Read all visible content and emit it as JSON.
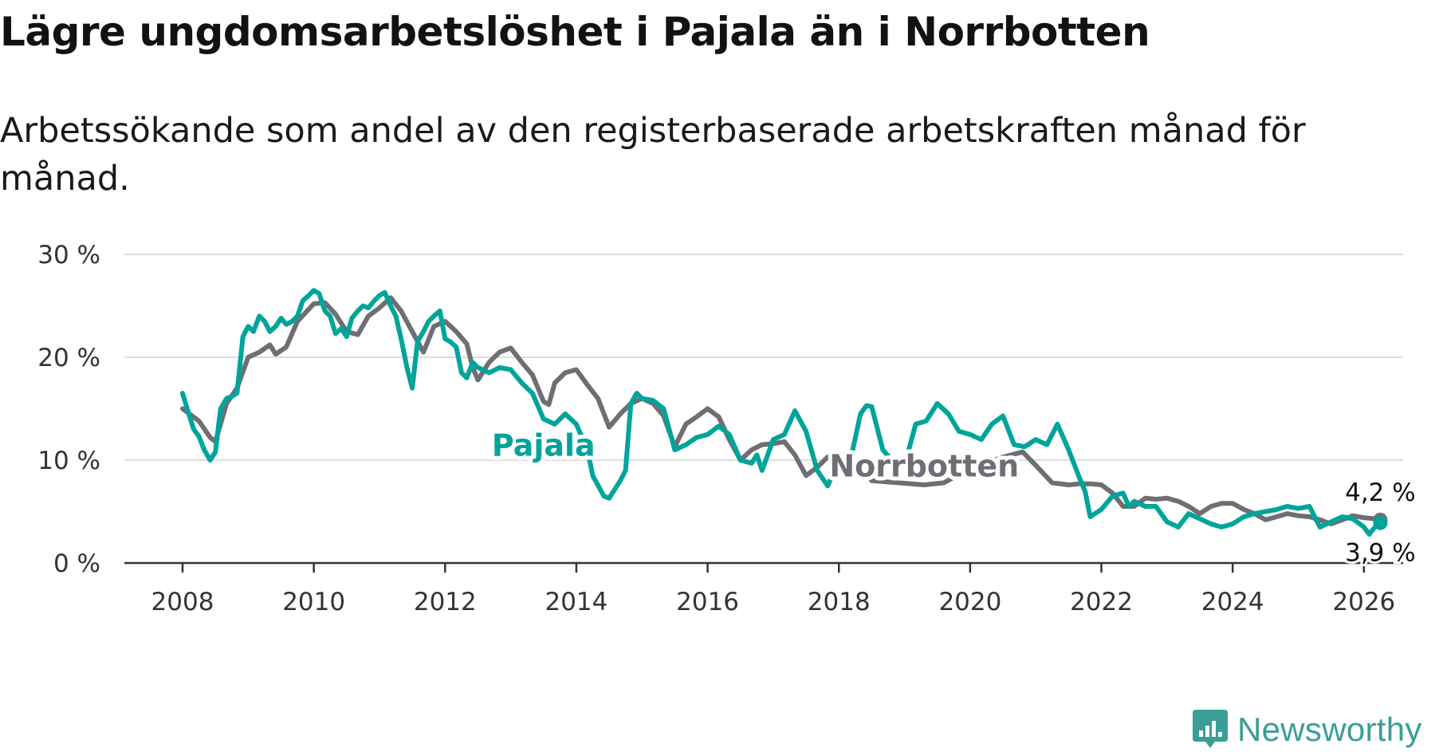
{
  "title": "Lägre ungdomsarbetslöshet i Pajala än i Norrbotten",
  "subtitle": "Arbetssökande som andel av den registerbaserade arbetskraften månad för månad.",
  "logo": {
    "text": "Newsworthy",
    "icon": "newsworthy-logo-icon"
  },
  "colors": {
    "Pajala": "#00a49a",
    "Norrbotten": "#6f6e74",
    "grid": "#dddddd",
    "axis": "#333333",
    "text": "#121212"
  },
  "chart_data": {
    "type": "line",
    "title": "Lägre ungdomsarbetslöshet i Pajala än i Norrbotten",
    "xlabel": "",
    "ylabel": "",
    "xlim": [
      2008,
      2026.5
    ],
    "ylim": [
      0,
      30
    ],
    "grid": true,
    "x_ticks": [
      2008,
      2010,
      2012,
      2014,
      2016,
      2018,
      2020,
      2022,
      2024,
      2026
    ],
    "x_tick_labels": [
      "2008",
      "2010",
      "2012",
      "2014",
      "2016",
      "2018",
      "2020",
      "2022",
      "2024",
      "2026"
    ],
    "y_ticks": [
      0,
      10,
      20,
      30
    ],
    "y_tick_labels": [
      "0 %",
      "10 %",
      "20 %",
      "30 %"
    ],
    "series": [
      {
        "name": "Norrbotten",
        "label": "Norrbotten",
        "color": "#6f6e74",
        "end_label": "4,2 %",
        "points": [
          [
            2008.0,
            15.0
          ],
          [
            2008.25,
            13.8
          ],
          [
            2008.42,
            12.2
          ],
          [
            2008.5,
            11.8
          ],
          [
            2008.67,
            15.5
          ],
          [
            2008.83,
            17.0
          ],
          [
            2009.0,
            20.0
          ],
          [
            2009.17,
            20.5
          ],
          [
            2009.33,
            21.2
          ],
          [
            2009.42,
            20.3
          ],
          [
            2009.58,
            21.0
          ],
          [
            2009.75,
            23.5
          ],
          [
            2010.0,
            25.2
          ],
          [
            2010.17,
            25.3
          ],
          [
            2010.33,
            24.2
          ],
          [
            2010.5,
            22.5
          ],
          [
            2010.67,
            22.2
          ],
          [
            2010.83,
            24.0
          ],
          [
            2011.0,
            24.8
          ],
          [
            2011.17,
            25.8
          ],
          [
            2011.33,
            24.5
          ],
          [
            2011.5,
            22.5
          ],
          [
            2011.67,
            20.5
          ],
          [
            2011.83,
            23.0
          ],
          [
            2012.0,
            23.5
          ],
          [
            2012.17,
            22.5
          ],
          [
            2012.33,
            21.3
          ],
          [
            2012.42,
            19.0
          ],
          [
            2012.5,
            17.8
          ],
          [
            2012.67,
            19.5
          ],
          [
            2012.83,
            20.5
          ],
          [
            2013.0,
            20.9
          ],
          [
            2013.17,
            19.5
          ],
          [
            2013.33,
            18.3
          ],
          [
            2013.5,
            15.7
          ],
          [
            2013.58,
            15.4
          ],
          [
            2013.67,
            17.5
          ],
          [
            2013.83,
            18.5
          ],
          [
            2014.0,
            18.8
          ],
          [
            2014.17,
            17.3
          ],
          [
            2014.33,
            16.0
          ],
          [
            2014.5,
            13.2
          ],
          [
            2014.67,
            14.5
          ],
          [
            2014.83,
            15.5
          ],
          [
            2015.0,
            16.0
          ],
          [
            2015.17,
            15.5
          ],
          [
            2015.33,
            14.3
          ],
          [
            2015.5,
            11.3
          ],
          [
            2015.67,
            13.5
          ],
          [
            2015.83,
            14.2
          ],
          [
            2016.0,
            15.0
          ],
          [
            2016.17,
            14.2
          ],
          [
            2016.33,
            12.0
          ],
          [
            2016.5,
            10.0
          ],
          [
            2016.67,
            11.0
          ],
          [
            2016.83,
            11.5
          ],
          [
            2017.0,
            11.6
          ],
          [
            2017.17,
            11.8
          ],
          [
            2017.33,
            10.5
          ],
          [
            2017.5,
            8.5
          ],
          [
            2017.67,
            9.3
          ],
          [
            2017.83,
            10.3
          ],
          [
            2018.0,
            10.6
          ],
          [
            2018.17,
            10.2
          ],
          [
            2018.33,
            9.5
          ],
          [
            2018.5,
            8.0
          ],
          [
            2019.3,
            7.6
          ],
          [
            2019.6,
            7.8
          ],
          [
            2020.0,
            9.2
          ],
          [
            2020.5,
            10.3
          ],
          [
            2020.8,
            10.8
          ],
          [
            2021.0,
            9.5
          ],
          [
            2021.25,
            7.8
          ],
          [
            2021.5,
            7.6
          ],
          [
            2021.67,
            7.7
          ],
          [
            2021.83,
            7.7
          ],
          [
            2022.0,
            7.6
          ],
          [
            2022.17,
            6.8
          ],
          [
            2022.33,
            5.5
          ],
          [
            2022.5,
            5.5
          ],
          [
            2022.67,
            6.3
          ],
          [
            2022.83,
            6.2
          ],
          [
            2023.0,
            6.3
          ],
          [
            2023.17,
            6.0
          ],
          [
            2023.33,
            5.5
          ],
          [
            2023.5,
            4.8
          ],
          [
            2023.67,
            5.5
          ],
          [
            2023.83,
            5.8
          ],
          [
            2024.0,
            5.8
          ],
          [
            2024.17,
            5.2
          ],
          [
            2024.33,
            4.8
          ],
          [
            2024.5,
            4.2
          ],
          [
            2024.67,
            4.5
          ],
          [
            2024.83,
            4.8
          ],
          [
            2025.0,
            4.6
          ],
          [
            2025.17,
            4.5
          ],
          [
            2025.33,
            4.2
          ],
          [
            2025.5,
            3.8
          ],
          [
            2025.67,
            4.2
          ],
          [
            2025.83,
            4.6
          ],
          [
            2026.0,
            4.4
          ],
          [
            2026.17,
            4.3
          ],
          [
            2026.25,
            4.2
          ]
        ]
      },
      {
        "name": "Pajala",
        "label": "Pajala",
        "color": "#00a49a",
        "end_label": "3,9 %",
        "points": [
          [
            2008.0,
            16.5
          ],
          [
            2008.08,
            14.8
          ],
          [
            2008.17,
            13.0
          ],
          [
            2008.25,
            12.3
          ],
          [
            2008.33,
            11.0
          ],
          [
            2008.42,
            10.0
          ],
          [
            2008.5,
            10.8
          ],
          [
            2008.58,
            15.0
          ],
          [
            2008.67,
            16.0
          ],
          [
            2008.75,
            16.2
          ],
          [
            2008.83,
            16.5
          ],
          [
            2008.92,
            22.0
          ],
          [
            2009.0,
            23.0
          ],
          [
            2009.08,
            22.5
          ],
          [
            2009.17,
            24.0
          ],
          [
            2009.25,
            23.5
          ],
          [
            2009.33,
            22.5
          ],
          [
            2009.42,
            23.0
          ],
          [
            2009.5,
            23.8
          ],
          [
            2009.58,
            23.2
          ],
          [
            2009.67,
            23.5
          ],
          [
            2009.75,
            24.0
          ],
          [
            2009.83,
            25.5
          ],
          [
            2009.92,
            26.0
          ],
          [
            2010.0,
            26.5
          ],
          [
            2010.08,
            26.2
          ],
          [
            2010.17,
            24.5
          ],
          [
            2010.25,
            24.0
          ],
          [
            2010.33,
            22.3
          ],
          [
            2010.42,
            22.8
          ],
          [
            2010.5,
            22.0
          ],
          [
            2010.58,
            23.8
          ],
          [
            2010.67,
            24.5
          ],
          [
            2010.75,
            25.0
          ],
          [
            2010.83,
            24.8
          ],
          [
            2010.92,
            25.5
          ],
          [
            2011.0,
            26.0
          ],
          [
            2011.08,
            26.3
          ],
          [
            2011.17,
            25.0
          ],
          [
            2011.25,
            24.0
          ],
          [
            2011.33,
            21.8
          ],
          [
            2011.42,
            19.0
          ],
          [
            2011.5,
            17.0
          ],
          [
            2011.58,
            21.5
          ],
          [
            2011.67,
            22.5
          ],
          [
            2011.75,
            23.5
          ],
          [
            2011.83,
            24.0
          ],
          [
            2011.92,
            24.5
          ],
          [
            2012.0,
            21.8
          ],
          [
            2012.08,
            21.5
          ],
          [
            2012.17,
            21.0
          ],
          [
            2012.25,
            18.5
          ],
          [
            2012.33,
            18.0
          ],
          [
            2012.42,
            19.5
          ],
          [
            2012.5,
            19.0
          ],
          [
            2012.67,
            18.5
          ],
          [
            2012.83,
            19.0
          ],
          [
            2013.0,
            18.8
          ],
          [
            2013.17,
            17.5
          ],
          [
            2013.33,
            16.5
          ],
          [
            2013.5,
            14.0
          ],
          [
            2013.67,
            13.5
          ],
          [
            2013.83,
            14.5
          ],
          [
            2014.0,
            13.5
          ],
          [
            2014.17,
            11.0
          ],
          [
            2014.25,
            8.5
          ],
          [
            2014.42,
            6.5
          ],
          [
            2014.5,
            6.3
          ],
          [
            2014.67,
            8.0
          ],
          [
            2014.75,
            9.0
          ],
          [
            2014.83,
            15.5
          ],
          [
            2014.92,
            16.5
          ],
          [
            2015.0,
            16.0
          ],
          [
            2015.17,
            15.8
          ],
          [
            2015.33,
            15.0
          ],
          [
            2015.5,
            11.0
          ],
          [
            2015.67,
            11.5
          ],
          [
            2015.83,
            12.2
          ],
          [
            2016.0,
            12.5
          ],
          [
            2016.17,
            13.3
          ],
          [
            2016.33,
            12.5
          ],
          [
            2016.5,
            10.0
          ],
          [
            2016.67,
            9.7
          ],
          [
            2016.75,
            10.5
          ],
          [
            2016.83,
            9.0
          ],
          [
            2017.0,
            12.0
          ],
          [
            2017.17,
            12.5
          ],
          [
            2017.33,
            14.8
          ],
          [
            2017.5,
            12.8
          ],
          [
            2017.67,
            9.0
          ],
          [
            2017.83,
            7.5
          ],
          [
            2018.0,
            10.0
          ],
          [
            2018.17,
            9.8
          ],
          [
            2018.33,
            14.5
          ],
          [
            2018.42,
            15.3
          ],
          [
            2018.5,
            15.2
          ],
          [
            2018.67,
            11.0
          ],
          [
            2018.83,
            9.8
          ],
          [
            2019.0,
            9.5
          ],
          [
            2019.17,
            13.5
          ],
          [
            2019.33,
            13.8
          ],
          [
            2019.5,
            15.5
          ],
          [
            2019.67,
            14.5
          ],
          [
            2019.83,
            12.8
          ],
          [
            2020.0,
            12.5
          ],
          [
            2020.17,
            12.0
          ],
          [
            2020.33,
            13.5
          ],
          [
            2020.5,
            14.3
          ],
          [
            2020.67,
            11.5
          ],
          [
            2020.83,
            11.3
          ],
          [
            2021.0,
            12.0
          ],
          [
            2021.17,
            11.5
          ],
          [
            2021.33,
            13.5
          ],
          [
            2021.5,
            11.0
          ],
          [
            2021.67,
            8.2
          ],
          [
            2021.75,
            7.0
          ],
          [
            2021.83,
            4.5
          ],
          [
            2022.0,
            5.2
          ],
          [
            2022.17,
            6.5
          ],
          [
            2022.33,
            6.8
          ],
          [
            2022.42,
            5.5
          ],
          [
            2022.5,
            6.0
          ],
          [
            2022.67,
            5.5
          ],
          [
            2022.83,
            5.5
          ],
          [
            2023.0,
            4.0
          ],
          [
            2023.17,
            3.5
          ],
          [
            2023.33,
            4.8
          ],
          [
            2023.5,
            4.3
          ],
          [
            2023.67,
            3.8
          ],
          [
            2023.83,
            3.5
          ],
          [
            2024.0,
            3.8
          ],
          [
            2024.17,
            4.5
          ],
          [
            2024.33,
            4.8
          ],
          [
            2024.5,
            5.0
          ],
          [
            2024.67,
            5.2
          ],
          [
            2024.83,
            5.5
          ],
          [
            2025.0,
            5.3
          ],
          [
            2025.17,
            5.5
          ],
          [
            2025.33,
            3.5
          ],
          [
            2025.5,
            4.0
          ],
          [
            2025.67,
            4.5
          ],
          [
            2025.83,
            4.3
          ],
          [
            2026.0,
            3.5
          ],
          [
            2026.08,
            2.8
          ],
          [
            2026.17,
            3.5
          ],
          [
            2026.25,
            3.9
          ]
        ]
      }
    ],
    "inline_labels": [
      {
        "series": "Pajala",
        "text": "Pajala",
        "x": 2013.5,
        "y": 11.5
      },
      {
        "series": "Norrbotten",
        "text": "Norrbotten",
        "x": 2019.3,
        "y": 9.5
      }
    ]
  }
}
